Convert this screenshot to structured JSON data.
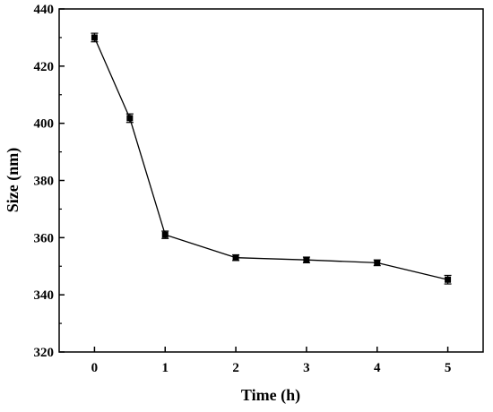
{
  "chart_data": {
    "type": "line",
    "title": "",
    "xlabel": "Time (h)",
    "ylabel": "Size (nm)",
    "xlim": [
      -0.5,
      5.5
    ],
    "ylim": [
      320,
      440
    ],
    "xticks": [
      0,
      1,
      2,
      3,
      4,
      5
    ],
    "yticks": [
      320,
      340,
      360,
      380,
      400,
      420,
      440
    ],
    "grid": false,
    "marker": "square",
    "series": [
      {
        "x": [
          0,
          0.5,
          1,
          2,
          3,
          4,
          5
        ],
        "y": [
          430,
          401.8,
          361,
          353,
          352.2,
          351.2,
          345.3
        ],
        "error": [
          1.5,
          1.5,
          1.3,
          1.0,
          1.0,
          1.0,
          1.5
        ]
      }
    ],
    "colors": {
      "line": "#000000",
      "marker": "#000000"
    }
  }
}
